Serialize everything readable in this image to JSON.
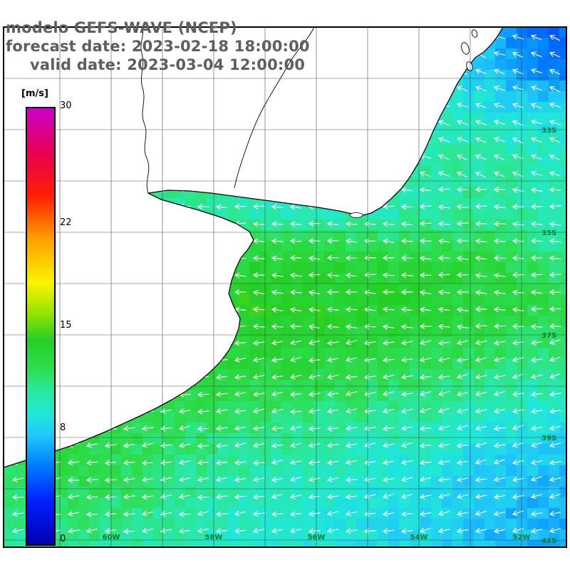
{
  "header": {
    "line1": "modelo GEFS-WAVE (NCEP)",
    "line2": "forecast date: 2023-02-18 18:00:00",
    "line3": "valid date: 2023-03-04 12:00:00"
  },
  "colorbar": {
    "unit": "[m/s]",
    "ticks": [
      "30",
      "22",
      "15",
      "8",
      "0"
    ],
    "range": [
      0,
      30
    ],
    "stops": [
      [
        0,
        "#0000b0"
      ],
      [
        3,
        "#0020ff"
      ],
      [
        5.5,
        "#0080ff"
      ],
      [
        7.5,
        "#20c8f8"
      ],
      [
        9,
        "#20e8d8"
      ],
      [
        10.5,
        "#2ae8a0"
      ],
      [
        12,
        "#2ede52"
      ],
      [
        14,
        "#24cf24"
      ],
      [
        16,
        "#9be400"
      ],
      [
        18,
        "#f8f400"
      ],
      [
        21,
        "#ffa000"
      ],
      [
        24,
        "#ff1e00"
      ],
      [
        27,
        "#e60054"
      ],
      [
        30,
        "#cc00cc"
      ]
    ]
  },
  "map": {
    "lat_labels": [
      "33S",
      "35S",
      "37S",
      "39S",
      "41S"
    ],
    "lon_labels": [
      "60W",
      "58W",
      "56W",
      "54W",
      "52W"
    ],
    "arrow_color": "#ffffff",
    "land_color": "#ffffff",
    "coast_color": "#000000"
  },
  "chart_data": {
    "type": "heatmap",
    "variable": "wind speed with direction arrows",
    "units": "m/s",
    "model": "GEFS-WAVE (NCEP)",
    "forecast_date": "2023-02-18 18:00:00",
    "valid_date": "2023-03-04 12:00:00",
    "colorbar_ticks": [
      30,
      22,
      15,
      8,
      0
    ],
    "colorbar_range": [
      0,
      30
    ],
    "field_summary": "Ocean wind field 5-14 m/s: green band (~13 m/s) across central latitudes, cyan (~9-10 m/s) north and south, blue patches (~5-8 m/s) in top-right and bottom-right; white arrows point generally westward"
  }
}
